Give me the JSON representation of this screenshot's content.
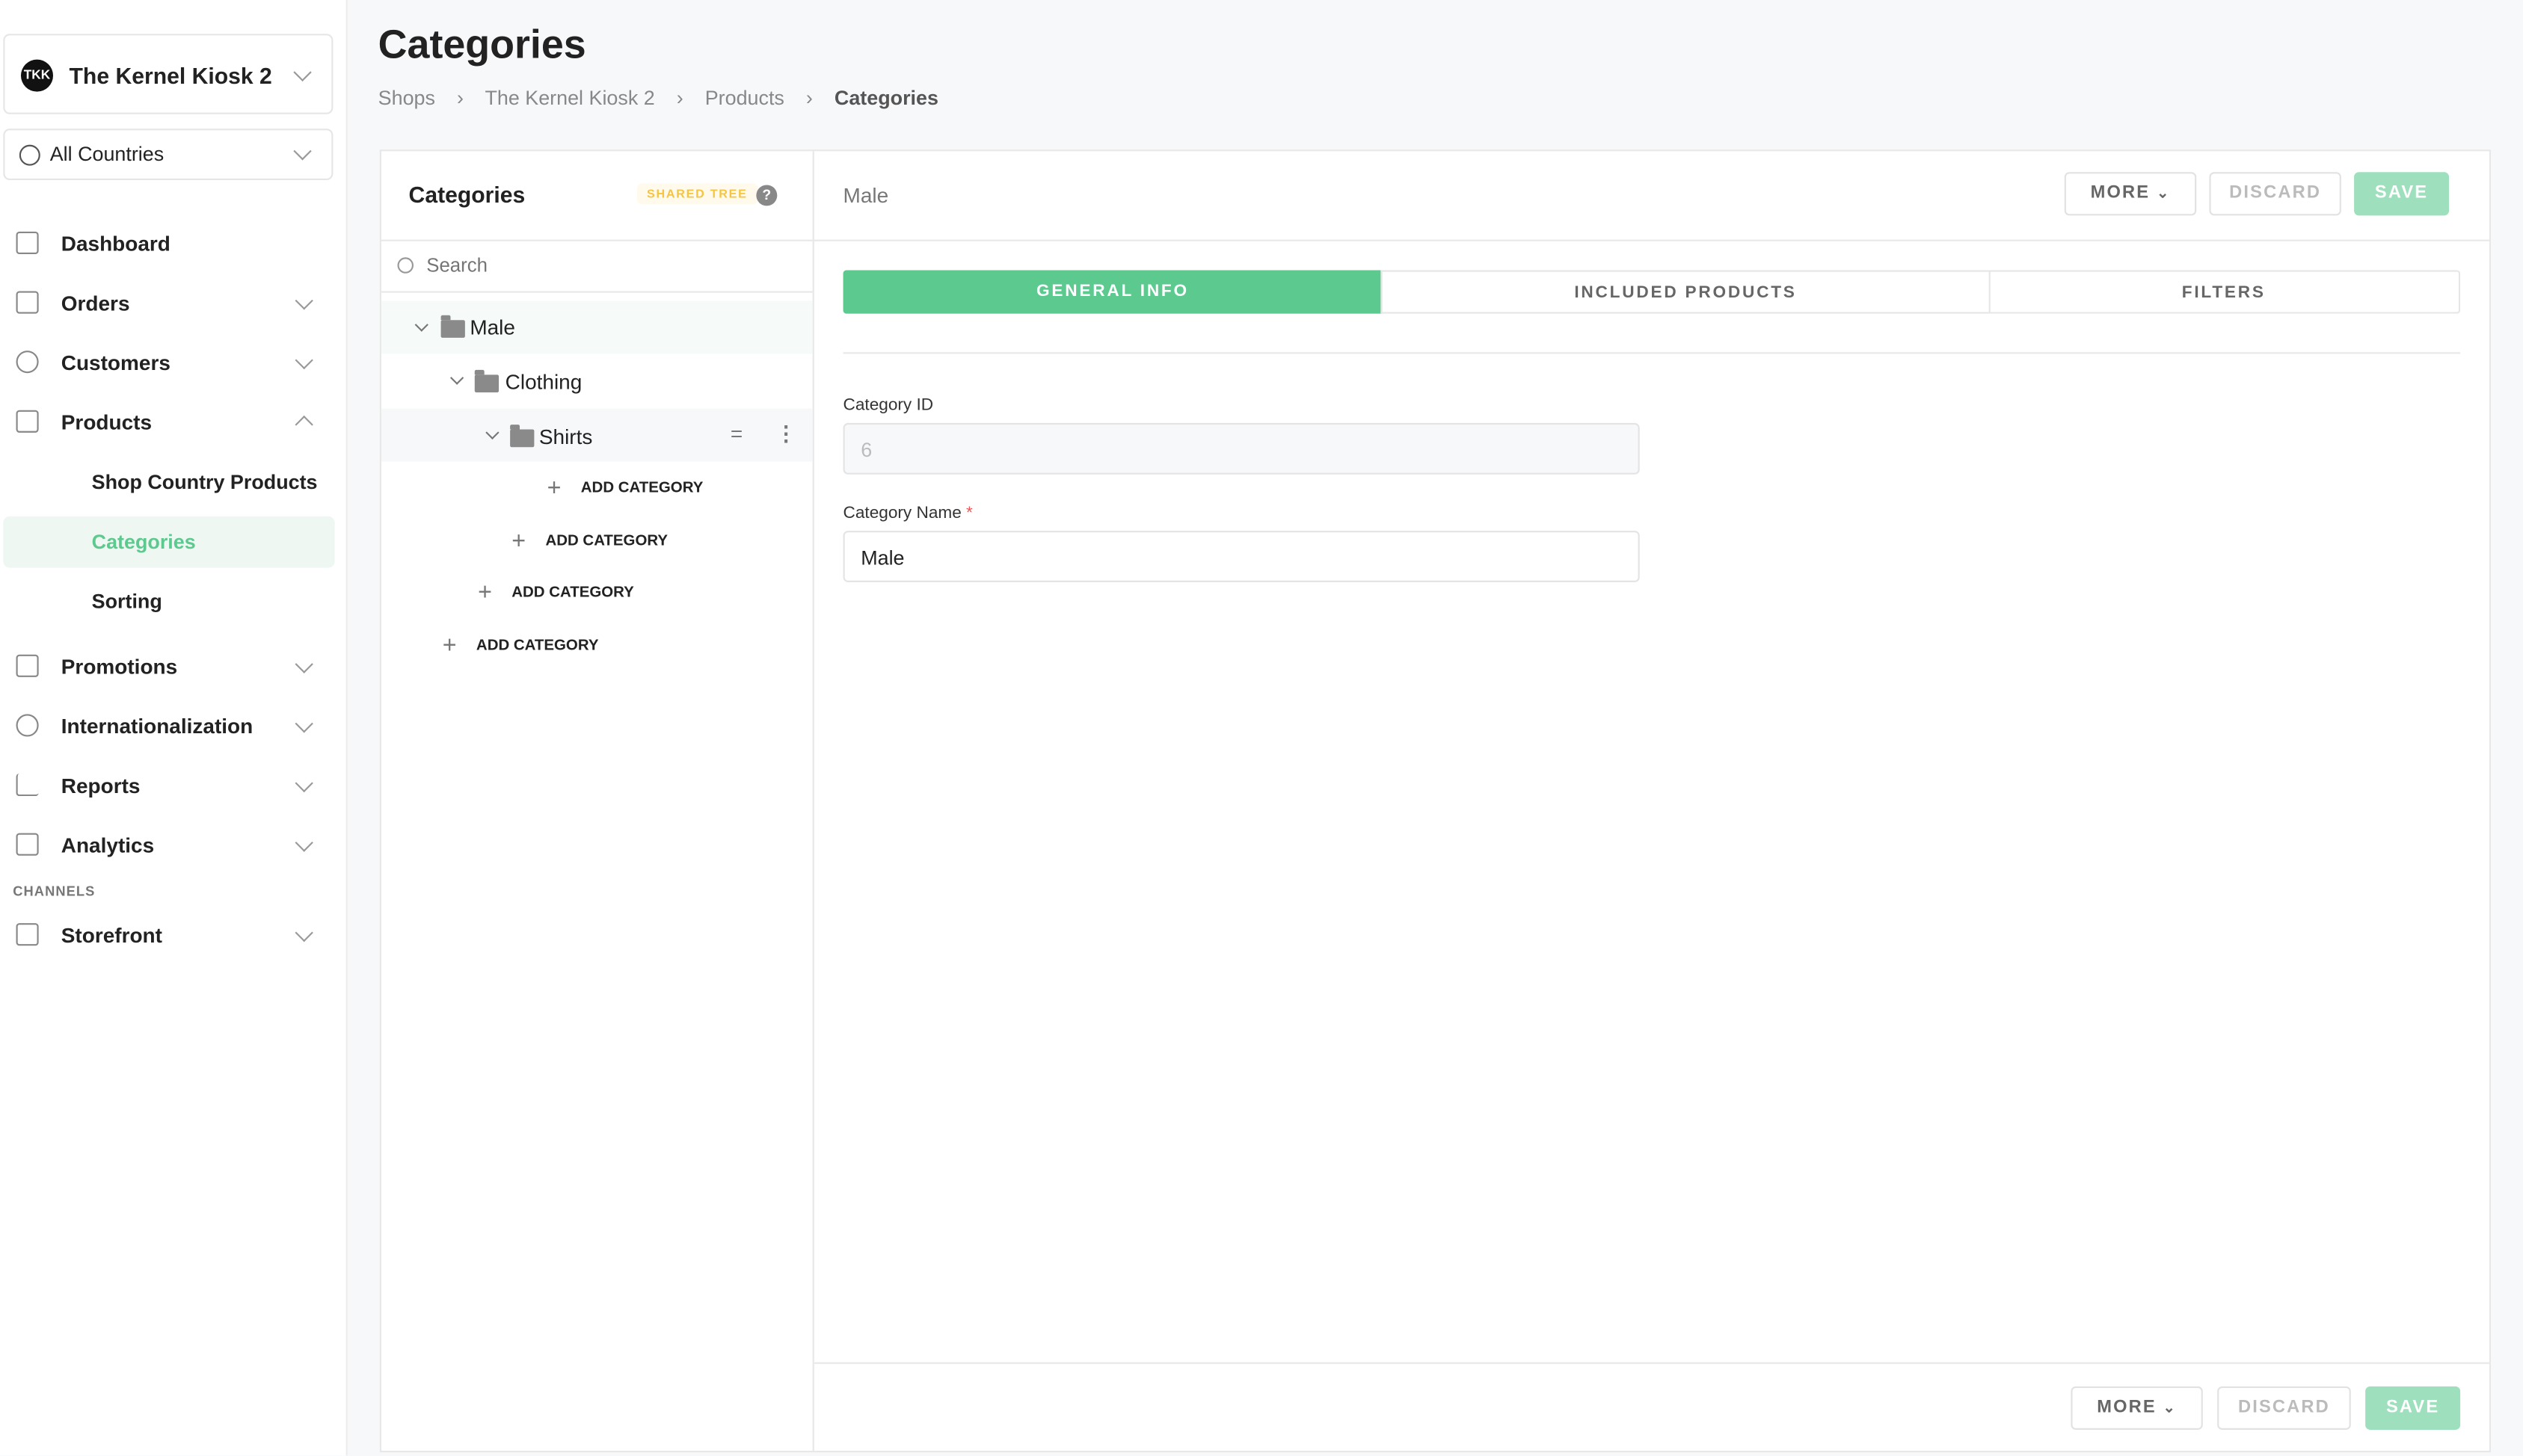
{
  "sidebar": {
    "store": {
      "avatar": "TKK",
      "name": "The Kernel Kiosk 2"
    },
    "country": {
      "label": "All Countries"
    },
    "items": [
      {
        "label": "Dashboard",
        "icon": "dashboard-icon"
      },
      {
        "label": "Orders",
        "icon": "orders-icon"
      },
      {
        "label": "Customers",
        "icon": "customers-icon"
      },
      {
        "label": "Products",
        "icon": "shirt-icon",
        "expanded": true
      },
      {
        "label": "Promotions",
        "icon": "ticket-icon"
      },
      {
        "label": "Internationalization",
        "icon": "globe-icon"
      },
      {
        "label": "Reports",
        "icon": "bar-chart-icon"
      },
      {
        "label": "Analytics",
        "icon": "analytics-icon"
      }
    ],
    "product_subitems": [
      {
        "label": "Shop Country Products"
      },
      {
        "label": "Categories",
        "active": true
      },
      {
        "label": "Sorting"
      }
    ],
    "channels_heading": "CHANNELS",
    "channels": [
      {
        "label": "Storefront",
        "icon": "storefront-icon"
      }
    ]
  },
  "page": {
    "title": "Categories",
    "breadcrumb": [
      "Shops",
      "The Kernel Kiosk 2",
      "Products",
      "Categories"
    ]
  },
  "tree": {
    "title": "Categories",
    "badge": "SHARED TREE",
    "search_placeholder": "Search",
    "nodes": [
      {
        "label": "Male",
        "level": 0
      },
      {
        "label": "Clothing",
        "level": 1
      },
      {
        "label": "Shirts",
        "level": 2
      }
    ],
    "add_label": "ADD CATEGORY"
  },
  "detail": {
    "title": "Male",
    "more_label": "MORE",
    "discard_label": "DISCARD",
    "save_label": "SAVE",
    "tabs": [
      {
        "label": "GENERAL INFO",
        "active": true
      },
      {
        "label": "INCLUDED PRODUCTS"
      },
      {
        "label": "FILTERS"
      }
    ],
    "fields": {
      "category_id_label": "Category ID",
      "category_id_value": "6",
      "category_name_label": "Category Name",
      "required_mark": "*",
      "category_name_value": "Male"
    }
  },
  "colors": {
    "accent": "#5cc98f",
    "accent_light": "#9ee0bd",
    "badge_text": "#f5c542",
    "badge_bg": "#fffaeb",
    "active_bg": "#eef7f1"
  }
}
